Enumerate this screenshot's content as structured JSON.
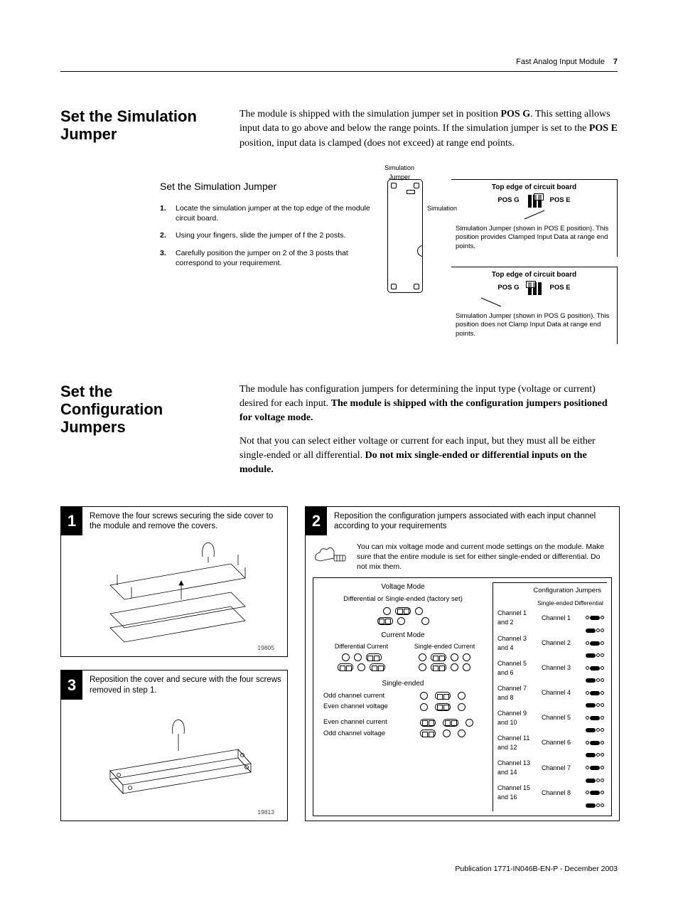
{
  "header": {
    "title": "Fast Analog Input Module",
    "page": "7"
  },
  "sim": {
    "heading": "Set the Simulation Jumper",
    "body_html": "The module is shipped with the simulation jumper set in position <b>POS G</b>. This setting allows input data to go above and below the range points. If the simulation jumper is set to the <b>POS E</b> position, input data is clamped (does not exceed) at range end points.",
    "subhead": "Set the Simulation Jumper",
    "steps": [
      "Locate the simulation jumper at the top edge of the module circuit board.",
      "Using your fingers, slide the jumper of  f the 2 posts.",
      "Carefully position the jumper on 2 of the 3 posts that correspond to your requirement."
    ],
    "label_jumper": "Simulation Jumper",
    "label_sim": "Simulation",
    "board_caption": "Top edge of circuit board",
    "pos_g": "POS G",
    "pos_e": "POS E",
    "note_e": "Simulation  Jumper (shown in POS E  position). This position provides   Clamped Input   Data at range end points.",
    "note_g": "Simulation  Jumper (shown in POS G  position). This position   does not Clamp   Input Data at range end points."
  },
  "config": {
    "heading": "Set the Configuration Jumpers",
    "body_html_1": "The module has configuration jumpers for determining the input type (voltage or current) desired for each input. <b>The module is shipped with the configuration jumpers positioned for voltage mode.</b>",
    "body_html_2": "Not that you can select either voltage or current for each input, but they must all be either single-ended or all differential. <b>Do not mix single-ended or differential inputs on the module.</b>",
    "step1": "Remove the four screws securing the side cover to the module and remove the covers.",
    "step2": "Reposition the configuration jumpers associated with each input channel according to your requirements",
    "step2_note": "You can mix voltage mode and current mode settings on the module. Make sure that the entire module is set for either single-ended or differential. Do not mix them.",
    "step3": "Reposition the cover and secure with the four screws removed in step 1.",
    "img1": "19805",
    "img3": "19813",
    "voltage_mode": "Voltage Mode",
    "voltage_sub": "Differential or Single-ended (factory set)",
    "current_mode": "Current Mode",
    "diff_current": "Differential Current",
    "se_current": "Single-ended Current",
    "single_ended": "Single-ended",
    "odd_cur": "Odd channel current",
    "even_volt": "Even channel voltage",
    "even_cur": "Even channel current",
    "odd_volt": "Odd channel voltage",
    "config_jumpers": "Configuration Jumpers",
    "se_diff_head": "Single-ended Differential",
    "left_ch": [
      "Channel 1 and 2",
      "Channel 3 and 4",
      "Channel 5 and 6",
      "Channel 7 and 8",
      "Channel 9 and 10",
      "Channel 11 and 12",
      "Channel 13 and 14",
      "Channel 15 and 16"
    ],
    "right_ch": [
      "Channel 1",
      "Channel 2",
      "Channel 3",
      "Channel 4",
      "Channel 5",
      "Channel 6",
      "Channel 7",
      "Channel 8"
    ]
  },
  "footer": "Publication 1771-IN046B-EN-P - December 2003"
}
